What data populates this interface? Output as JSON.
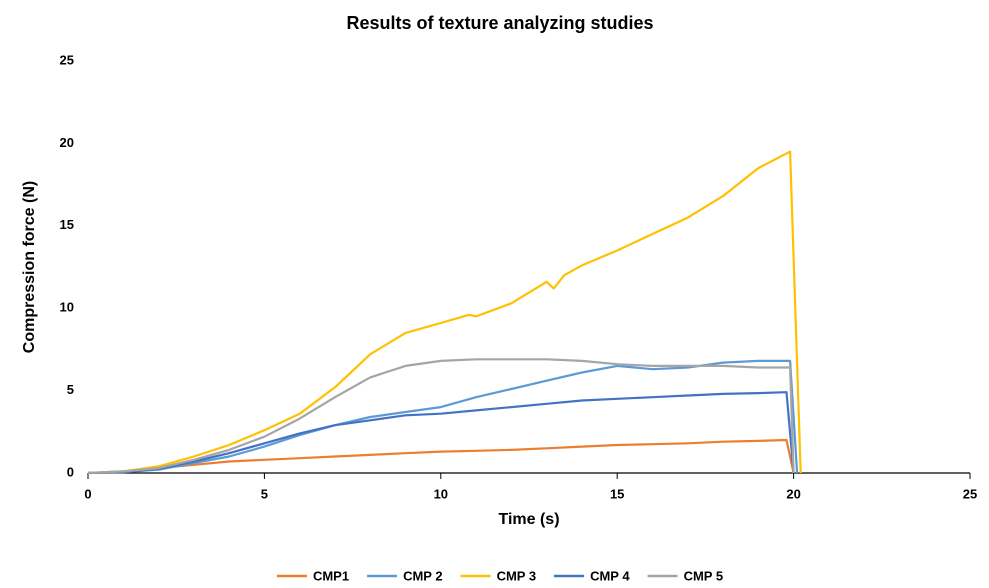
{
  "chart_data": {
    "type": "line",
    "title": "Results of texture analyzing studies",
    "xlabel": "Time (s)",
    "ylabel": "Compression force (N)",
    "xlim": [
      0,
      25
    ],
    "xticks": [
      0,
      5,
      10,
      15,
      20,
      25
    ],
    "ylim": [
      0,
      25
    ],
    "yticks": [
      0,
      5,
      10,
      15,
      20,
      25
    ],
    "grid": false,
    "legend": "bottom",
    "series": [
      {
        "name": "CMP1",
        "color": "#ED7D31",
        "x": [
          0,
          1,
          2,
          3,
          4,
          5,
          6,
          7,
          8,
          9,
          10,
          11,
          12,
          13,
          14,
          15,
          16,
          17,
          18,
          19,
          19.8,
          20
        ],
        "values": [
          0,
          0.1,
          0.3,
          0.5,
          0.7,
          0.8,
          0.9,
          1.0,
          1.1,
          1.2,
          1.3,
          1.35,
          1.4,
          1.5,
          1.6,
          1.7,
          1.75,
          1.8,
          1.9,
          1.95,
          2.0,
          0
        ]
      },
      {
        "name": "CMP 2",
        "color": "#5B9BD5",
        "x": [
          0,
          1,
          2,
          3,
          4,
          5,
          6,
          7,
          8,
          9,
          10,
          11,
          12,
          13,
          14,
          15,
          16,
          17,
          18,
          19,
          19.9,
          20.1
        ],
        "values": [
          0,
          0.05,
          0.2,
          0.6,
          1.0,
          1.6,
          2.3,
          2.9,
          3.4,
          3.7,
          4.0,
          4.6,
          5.1,
          5.6,
          6.1,
          6.5,
          6.3,
          6.4,
          6.7,
          6.8,
          6.8,
          0
        ]
      },
      {
        "name": "CMP 3",
        "color": "#FFC000",
        "x": [
          0,
          1,
          2,
          3,
          4,
          5,
          6,
          7,
          8,
          9,
          10,
          10.8,
          11,
          12,
          13,
          13.2,
          13.5,
          14,
          15,
          16,
          17,
          18,
          19,
          19.9,
          20.2
        ],
        "values": [
          0,
          0.1,
          0.4,
          1.0,
          1.7,
          2.6,
          3.6,
          5.2,
          7.2,
          8.5,
          9.1,
          9.6,
          9.5,
          10.3,
          11.6,
          11.2,
          12.0,
          12.6,
          13.5,
          14.5,
          15.5,
          16.8,
          18.5,
          19.5,
          0
        ]
      },
      {
        "name": "CMP 4",
        "color": "#4472C4",
        "x": [
          0,
          1,
          2,
          3,
          4,
          5,
          6,
          7,
          8,
          9,
          10,
          11,
          12,
          13,
          14,
          15,
          16,
          17,
          18,
          19,
          19.8,
          20
        ],
        "values": [
          0,
          0.05,
          0.25,
          0.7,
          1.2,
          1.8,
          2.4,
          2.9,
          3.2,
          3.5,
          3.6,
          3.8,
          4.0,
          4.2,
          4.4,
          4.5,
          4.6,
          4.7,
          4.8,
          4.85,
          4.9,
          0
        ]
      },
      {
        "name": "CMP 5",
        "color": "#A5A5A5",
        "x": [
          0,
          1,
          2,
          3,
          4,
          5,
          6,
          7,
          8,
          9,
          10,
          11,
          12,
          13,
          14,
          15,
          16,
          17,
          18,
          19,
          19.9,
          20
        ],
        "values": [
          0,
          0.1,
          0.3,
          0.8,
          1.4,
          2.2,
          3.3,
          4.6,
          5.8,
          6.5,
          6.8,
          6.9,
          6.9,
          6.9,
          6.8,
          6.6,
          6.5,
          6.5,
          6.5,
          6.4,
          6.4,
          0
        ]
      }
    ]
  }
}
